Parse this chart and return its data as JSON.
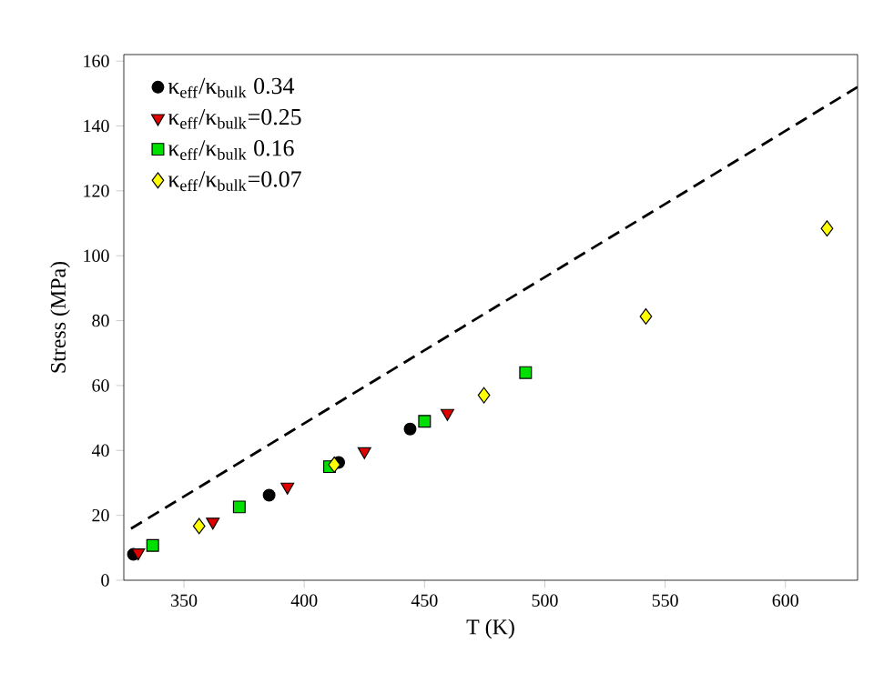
{
  "chart_data": {
    "type": "scatter",
    "xlabel": "T (K)",
    "ylabel": "Stress (MPa)",
    "xlim": [
      325,
      630
    ],
    "ylim": [
      0,
      162
    ],
    "xticks": [
      350,
      400,
      450,
      500,
      550,
      600
    ],
    "yticks": [
      0,
      20,
      40,
      60,
      80,
      100,
      120,
      140,
      160
    ],
    "grid": false,
    "legend": "top left",
    "series": [
      {
        "name": "κ$_{eff}$/κ$_{bulk}$ 0.34",
        "color": "#000000",
        "marker": "circle",
        "x": [
          329,
          385.4,
          414.3,
          444
        ],
        "values": [
          8,
          26.2,
          36.3,
          46.6
        ]
      },
      {
        "name": "κ$_{eff}$/κ$_{bulk}$=0.25",
        "color": "#e00000",
        "marker": "triangle",
        "x": [
          331,
          362,
          393,
          425,
          459.5
        ],
        "values": [
          8.5,
          18,
          28.8,
          39.7,
          51.5
        ]
      },
      {
        "name": "κ$_{eff}$/κ$_{bulk}$ 0.16",
        "color": "#00e000",
        "marker": "square",
        "x": [
          337,
          373,
          410.5,
          450,
          492
        ],
        "values": [
          10.7,
          22.6,
          35,
          49,
          64
        ]
      },
      {
        "name": "κ$_{eff}$/κ$_{bulk}$=0.07",
        "color": "#ffff00",
        "marker": "diamond",
        "x": [
          356.3,
          412.5,
          474.7,
          542,
          617.3
        ],
        "values": [
          16.7,
          35.6,
          57,
          81.3,
          108.4
        ]
      },
      {
        "type": "line",
        "line_style": "dashed",
        "marker": "none",
        "color": "#000000",
        "x": [
          328,
          630
        ],
        "values": [
          15.9,
          152
        ]
      }
    ]
  }
}
